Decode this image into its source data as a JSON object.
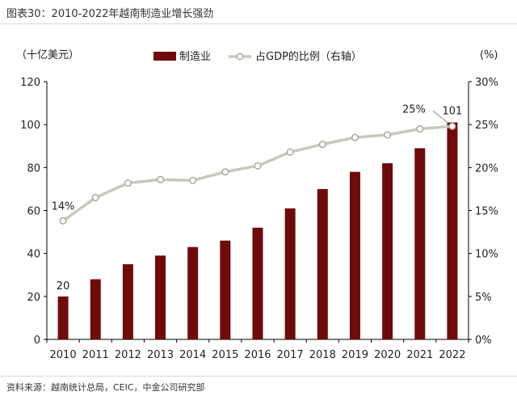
{
  "title": "图表30：2010-2022年越南制造业增长强劲",
  "source": "资料来源：越南统计总局，CEIC，中金公司研究部",
  "chart_data": {
    "type": "bar+line",
    "categories": [
      "2010",
      "2011",
      "2012",
      "2013",
      "2014",
      "2015",
      "2016",
      "2017",
      "2018",
      "2019",
      "2020",
      "2021",
      "2022"
    ],
    "series": [
      {
        "name": "制造业",
        "type": "bar",
        "axis": "left",
        "color": "#6e0b0b",
        "values": [
          20,
          28,
          35,
          39,
          43,
          46,
          52,
          61,
          70,
          78,
          82,
          89,
          101
        ]
      },
      {
        "name": "占GDP的比例（右轴）",
        "type": "line",
        "axis": "right",
        "color": "#c8c9bc",
        "values": [
          13.8,
          16.5,
          18.2,
          18.6,
          18.5,
          19.5,
          20.2,
          21.8,
          22.7,
          23.5,
          23.8,
          24.5,
          24.8
        ]
      }
    ],
    "left_axis": {
      "label": "（十亿美元）",
      "min": 0,
      "max": 120,
      "ticks": [
        "0",
        "20",
        "40",
        "60",
        "80",
        "100",
        "120"
      ]
    },
    "right_axis": {
      "label": "(%)",
      "min": 0,
      "max": 30,
      "ticks": [
        "0%",
        "5%",
        "10%",
        "15%",
        "20%",
        "25%",
        "30%"
      ]
    },
    "annotations": [
      {
        "text": "20",
        "series": 0,
        "index": 0
      },
      {
        "text": "101",
        "series": 0,
        "index": 12
      },
      {
        "text": "14%",
        "series": 1,
        "index": 0
      },
      {
        "text": "25%",
        "series": 1,
        "index": 12
      }
    ],
    "legend": {
      "placement": "top"
    }
  }
}
